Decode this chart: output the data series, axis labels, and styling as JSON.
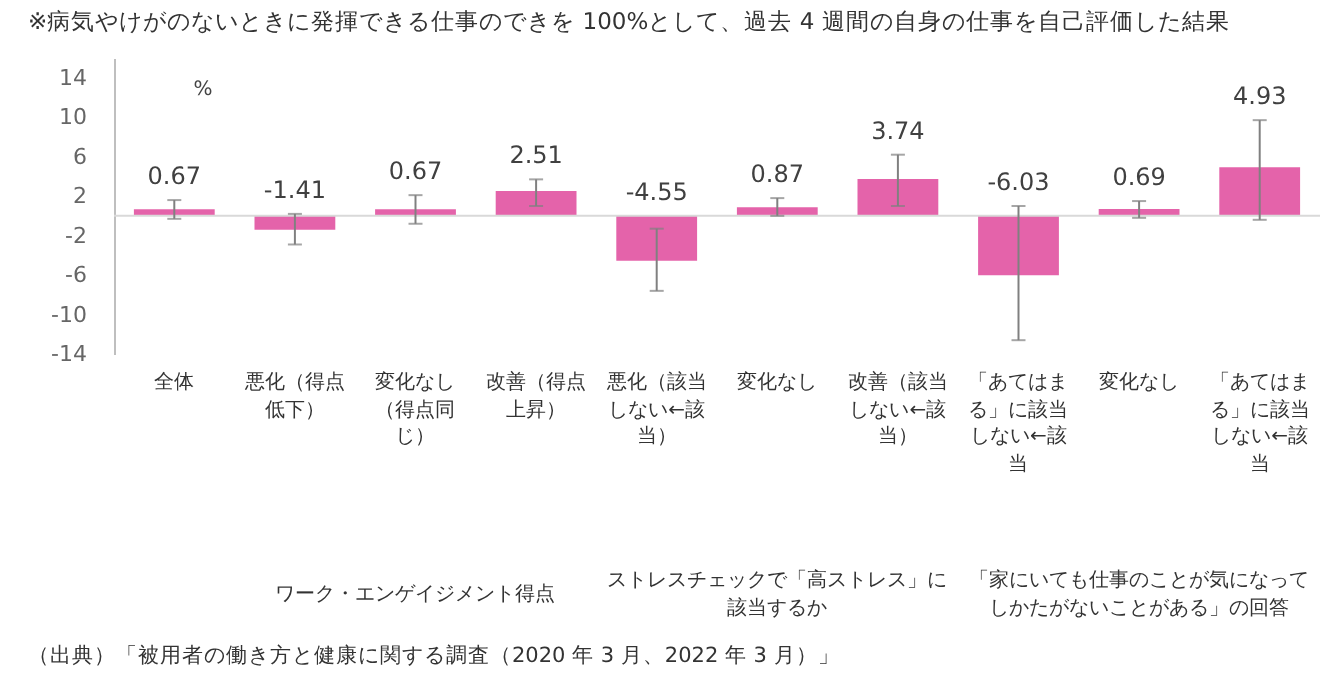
{
  "chart_data": {
    "type": "bar",
    "title": "※病気やけがのないときに発揮できる仕事のできを 100%として、過去 4 週間の自身の仕事を自己評価した結果",
    "ylabel": "%",
    "categories": [
      "全体",
      "悪化（得点低下）",
      "変化なし（得点同じ）",
      "改善（得点上昇）",
      "悪化（該当しない←該当）",
      "変化なし",
      "改善（該当しない←該当）",
      "「あてはまる」に該当しない←該当",
      "変化なし",
      "「あてはまる」に該当しない←該当"
    ],
    "series": [
      {
        "color": "#e463aa",
        "values": [
          0.67,
          -1.41,
          0.67,
          2.51,
          -4.55,
          0.87,
          3.74,
          -6.03,
          0.69,
          4.93
        ],
        "errors": [
          [
            -0.3,
            1.6
          ],
          [
            -2.9,
            0.2
          ],
          [
            -0.8,
            2.1
          ],
          [
            1.0,
            3.7
          ],
          [
            -7.6,
            -1.3
          ],
          [
            0,
            1.8
          ],
          [
            1.0,
            6.2
          ],
          [
            -12.6,
            1.0
          ],
          [
            -0.2,
            1.5
          ],
          [
            -0.4,
            9.7
          ]
        ]
      }
    ],
    "data_labels": true,
    "ylim": [
      -14,
      16
    ],
    "yticks": [
      -14,
      -10,
      -6,
      -2,
      2,
      6,
      10,
      14
    ],
    "grid": false,
    "annotations": [
      "ワーク・エンゲイジメント得点",
      "ストレスチェックで「高ストレス」に該当するか",
      "「家にいても仕事のことが気になってしかたがないことがある」の回答",
      "（出典）「被用者の働き方と健康に関する調査（2020 年 3 月、2022 年 3 月）」"
    ]
  }
}
